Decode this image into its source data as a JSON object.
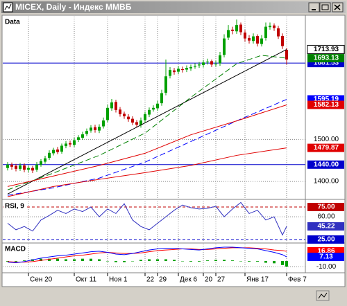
{
  "window": {
    "title": "MICEX, Daily - Индекс ММВБ"
  },
  "chart_data": [
    {
      "type": "candlestick",
      "label": "Data",
      "categories": [
        null,
        null,
        null,
        null,
        null,
        "Сен 20",
        null,
        null,
        null,
        null,
        null,
        null,
        null,
        null,
        null,
        null,
        "Окт 11",
        null,
        null,
        null,
        null,
        null,
        null,
        null,
        "Ноя 1",
        null,
        null,
        null,
        null,
        null,
        null,
        null,
        null,
        "22",
        null,
        null,
        "29",
        null,
        null,
        null,
        null,
        "Дек 6",
        null,
        null,
        null,
        null,
        null,
        "20",
        null,
        null,
        "27",
        null,
        null,
        null,
        null,
        null,
        null,
        "Янв 17",
        null,
        null,
        null,
        null,
        null,
        null,
        null,
        null,
        null,
        "Фев 7"
      ],
      "open": [
        1432,
        1440,
        1437,
        1430,
        1438,
        1428,
        1432,
        1428,
        1440,
        1447,
        1456,
        1467,
        1476,
        1471,
        1484,
        1491,
        1487,
        1499,
        1504,
        1513,
        1521,
        1529,
        1521,
        1531,
        1546,
        1574,
        1589,
        1571,
        1561,
        1554,
        1549,
        1541,
        1534,
        1546,
        1559,
        1571,
        1574,
        1586,
        1611,
        1651,
        1664,
        1661,
        1667,
        1666,
        1669,
        1673,
        1676,
        1677,
        1684,
        1686,
        1679,
        1681,
        1701,
        1742,
        1761,
        1757,
        1773,
        1754,
        1741,
        1734,
        1746,
        1727,
        1741,
        1767,
        1771,
        1764,
        1746,
        1713
      ],
      "high": [
        1446,
        1445,
        1442,
        1444,
        1443,
        1438,
        1437,
        1446,
        1453,
        1461,
        1474,
        1480,
        1482,
        1490,
        1496,
        1497,
        1504,
        1510,
        1518,
        1526,
        1534,
        1535,
        1536,
        1552,
        1582,
        1596,
        1594,
        1577,
        1566,
        1560,
        1555,
        1546,
        1552,
        1566,
        1576,
        1581,
        1592,
        1618,
        1690,
        1672,
        1670,
        1675,
        1673,
        1676,
        1678,
        1681,
        1684,
        1689,
        1692,
        1690,
        1687,
        1708,
        1750,
        1772,
        1768,
        1785,
        1778,
        1760,
        1748,
        1752,
        1750,
        1748,
        1778,
        1778,
        1776,
        1770,
        1752,
        1718
      ],
      "low": [
        1426,
        1428,
        1424,
        1425,
        1422,
        1422,
        1420,
        1423,
        1435,
        1442,
        1451,
        1462,
        1465,
        1466,
        1479,
        1482,
        1482,
        1494,
        1499,
        1508,
        1516,
        1516,
        1515,
        1526,
        1541,
        1568,
        1564,
        1554,
        1549,
        1542,
        1534,
        1528,
        1528,
        1540,
        1553,
        1566,
        1568,
        1580,
        1605,
        1645,
        1654,
        1655,
        1659,
        1660,
        1663,
        1668,
        1670,
        1671,
        1678,
        1672,
        1673,
        1675,
        1695,
        1736,
        1750,
        1751,
        1748,
        1733,
        1728,
        1728,
        1721,
        1721,
        1735,
        1761,
        1758,
        1739,
        1715,
        1678
      ],
      "close": [
        1440,
        1435,
        1430,
        1438,
        1428,
        1432,
        1426,
        1440,
        1448,
        1455,
        1468,
        1475,
        1470,
        1485,
        1490,
        1488,
        1498,
        1505,
        1512,
        1520,
        1528,
        1522,
        1530,
        1545,
        1575,
        1588,
        1570,
        1560,
        1555,
        1548,
        1540,
        1535,
        1545,
        1560,
        1570,
        1575,
        1585,
        1610,
        1650,
        1665,
        1660,
        1668,
        1665,
        1670,
        1672,
        1675,
        1678,
        1683,
        1685,
        1678,
        1680,
        1700,
        1740,
        1760,
        1758,
        1772,
        1755,
        1740,
        1735,
        1745,
        1728,
        1740,
        1768,
        1770,
        1765,
        1745,
        1722,
        1690
      ],
      "up_color": "#00a000",
      "down_color": "#c00000",
      "ylim": [
        1359,
        1792
      ],
      "yticks": [
        {
          "value": 1400,
          "label": "1400.00"
        },
        {
          "value": 1500,
          "label": "1500.00"
        }
      ],
      "grid": true,
      "hlines": [
        {
          "value": 1681.53,
          "color": "#0000cc"
        },
        {
          "value": 1440,
          "label": "1440.00",
          "color": "#0000cc"
        }
      ],
      "series": [
        {
          "color": "#000000",
          "x": [
            0,
            67
          ],
          "values": [
            1370,
            1713.93
          ]
        },
        {
          "color": "#008000",
          "dash": true,
          "x": [
            0,
            11,
            22,
            33,
            44,
            55,
            61,
            67
          ],
          "values": [
            1380,
            1420,
            1462,
            1515,
            1600,
            1680,
            1700,
            1693.13
          ]
        },
        {
          "color": "#0000ff",
          "dash": true,
          "x": [
            0,
            11,
            22,
            33,
            44,
            55,
            67
          ],
          "values": [
            1367,
            1385,
            1408,
            1446,
            1495,
            1544,
            1595.19
          ]
        },
        {
          "color": "#e00000",
          "x": [
            0,
            11,
            22,
            33,
            44,
            55,
            67
          ],
          "values": [
            1388,
            1413,
            1438,
            1467,
            1511,
            1544,
            1582.13
          ]
        },
        {
          "color": "#e00000",
          "x": [
            0,
            11,
            22,
            33,
            44,
            55,
            67
          ],
          "values": [
            1364,
            1388,
            1405,
            1421,
            1438,
            1462,
            1479.87
          ]
        }
      ]
    },
    {
      "type": "line",
      "label": "RSI, 9",
      "x": [
        0,
        2,
        4,
        6,
        8,
        10,
        12,
        14,
        16,
        18,
        20,
        22,
        24,
        26,
        28,
        30,
        32,
        34,
        36,
        38,
        40,
        42,
        44,
        46,
        48,
        50,
        52,
        54,
        56,
        58,
        60,
        62,
        64,
        66,
        67
      ],
      "ylim": [
        20.7,
        84.6
      ],
      "yticks": [
        {
          "value": 60,
          "label": "60.00"
        }
      ],
      "grid": true,
      "hlines": [
        {
          "value": 75,
          "label": "75.00",
          "color": "#c00000",
          "dash": true
        },
        {
          "value": 25,
          "label": "25.00",
          "color": "#0000cc",
          "dash": true
        }
      ],
      "series": [
        {
          "color": "#3030c0",
          "values": [
            50,
            40,
            45,
            38,
            55,
            62,
            70,
            65,
            72,
            68,
            75,
            60,
            72,
            65,
            80,
            55,
            45,
            40,
            50,
            60,
            70,
            78,
            74,
            72,
            73,
            76,
            60,
            72,
            82,
            65,
            70,
            55,
            60,
            32,
            45.22
          ]
        }
      ]
    },
    {
      "type": "line",
      "label": "MACD",
      "x": [
        0,
        2,
        4,
        6,
        8,
        10,
        12,
        14,
        16,
        18,
        20,
        22,
        24,
        26,
        28,
        30,
        32,
        34,
        36,
        38,
        40,
        42,
        44,
        46,
        48,
        50,
        52,
        54,
        56,
        58,
        60,
        62,
        64,
        66,
        67
      ],
      "ylim": [
        -18,
        30
      ],
      "yticks": [
        {
          "value": -10,
          "label": "-10.00"
        }
      ],
      "grid": true,
      "series": [
        {
          "color": "#00a000",
          "style": "bar",
          "values": [
            -1,
            -1,
            1,
            3,
            4,
            4,
            4,
            3,
            3,
            4,
            4,
            3,
            0,
            -2,
            -2,
            0,
            2,
            3,
            3,
            3,
            2,
            0,
            -1,
            -1,
            1,
            2,
            2,
            1,
            0,
            -1,
            -1,
            -3,
            -4,
            -7,
            -9.73
          ]
        },
        {
          "color": "#ff0000",
          "values": [
            -1,
            -2,
            -2,
            -1,
            1,
            3,
            5,
            7,
            9,
            10,
            12,
            14,
            15,
            14,
            13,
            13,
            14,
            16,
            18,
            19,
            20,
            21,
            21,
            20,
            20,
            21,
            22,
            23,
            23,
            23,
            22,
            21,
            19,
            18,
            16.86
          ]
        },
        {
          "color": "#0000ff",
          "values": [
            -2,
            -3,
            -1,
            2,
            5,
            7,
            9,
            10,
            12,
            14,
            16,
            17,
            15,
            12,
            11,
            13,
            16,
            19,
            21,
            22,
            22,
            21,
            20,
            19,
            21,
            23,
            24,
            24,
            23,
            22,
            21,
            18,
            15,
            11,
            7.13
          ]
        }
      ]
    }
  ]
}
